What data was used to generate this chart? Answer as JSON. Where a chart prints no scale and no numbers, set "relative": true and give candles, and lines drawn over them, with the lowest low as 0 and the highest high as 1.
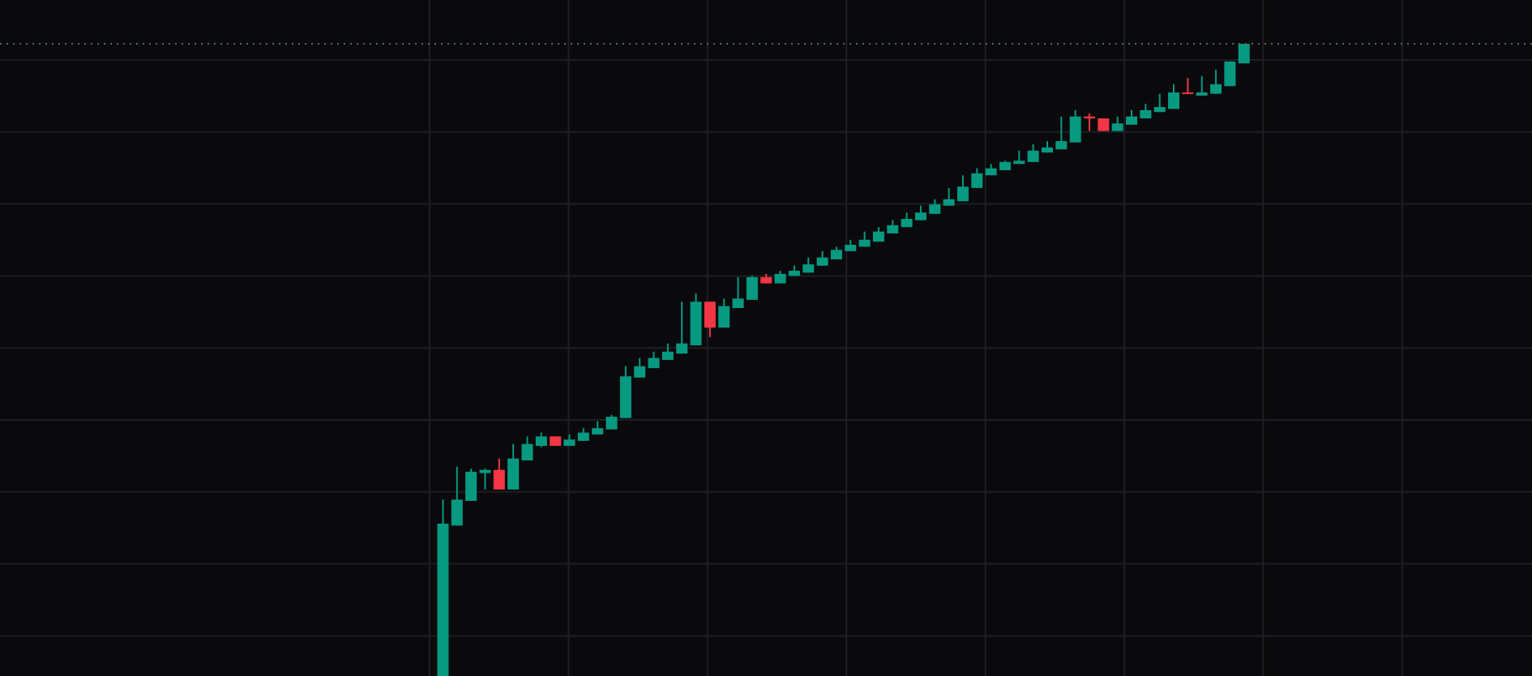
{
  "chart_data": {
    "type": "candlestick",
    "relative": true,
    "grid": true,
    "categories": [
      null,
      null,
      null,
      null,
      null,
      null,
      null,
      null,
      null,
      null,
      null,
      null,
      null,
      null,
      null,
      null,
      null,
      null,
      null,
      null,
      null,
      null,
      null,
      null,
      null,
      null,
      null,
      null,
      null,
      null,
      null,
      null,
      null,
      null,
      null,
      null,
      null,
      null,
      null,
      null,
      null,
      null,
      null,
      null,
      null,
      null,
      null,
      null,
      null,
      null,
      null,
      null,
      null,
      null,
      null,
      null,
      null,
      null
    ],
    "ohlc": [
      [
        0,
        0.279,
        0,
        0.241
      ],
      [
        0.238,
        0.331,
        0.238,
        0.279
      ],
      [
        0.277,
        0.328,
        0.277,
        0.323
      ],
      [
        0.321,
        0.328,
        0.295,
        0.326
      ],
      [
        0.326,
        0.344,
        0.295,
        0.295
      ],
      [
        0.295,
        0.367,
        0.295,
        0.344
      ],
      [
        0.341,
        0.379,
        0.341,
        0.367
      ],
      [
        0.364,
        0.385,
        0.362,
        0.379
      ],
      [
        0.379,
        0.379,
        0.364,
        0.364
      ],
      [
        0.364,
        0.382,
        0.364,
        0.374
      ],
      [
        0.372,
        0.392,
        0.372,
        0.385
      ],
      [
        0.382,
        0.403,
        0.382,
        0.392
      ],
      [
        0.39,
        0.413,
        0.39,
        0.41
      ],
      [
        0.408,
        0.49,
        0.408,
        0.474
      ],
      [
        0.472,
        0.503,
        0.472,
        0.49
      ],
      [
        0.487,
        0.513,
        0.487,
        0.503
      ],
      [
        0.5,
        0.526,
        0.5,
        0.513
      ],
      [
        0.51,
        0.592,
        0.51,
        0.526
      ],
      [
        0.523,
        0.605,
        0.523,
        0.592
      ],
      [
        0.592,
        0.592,
        0.536,
        0.551
      ],
      [
        0.551,
        0.597,
        0.551,
        0.585
      ],
      [
        0.582,
        0.631,
        0.582,
        0.597
      ],
      [
        0.595,
        0.633,
        0.595,
        0.631
      ],
      [
        0.631,
        0.636,
        0.621,
        0.621
      ],
      [
        0.621,
        0.641,
        0.621,
        0.636
      ],
      [
        0.633,
        0.649,
        0.633,
        0.641
      ],
      [
        0.638,
        0.662,
        0.638,
        0.651
      ],
      [
        0.649,
        0.672,
        0.649,
        0.662
      ],
      [
        0.659,
        0.679,
        0.659,
        0.674
      ],
      [
        0.672,
        0.69,
        0.672,
        0.682
      ],
      [
        0.679,
        0.703,
        0.679,
        0.69
      ],
      [
        0.687,
        0.71,
        0.687,
        0.703
      ],
      [
        0.7,
        0.721,
        0.7,
        0.713
      ],
      [
        0.71,
        0.733,
        0.71,
        0.723
      ],
      [
        0.721,
        0.744,
        0.721,
        0.733
      ],
      [
        0.731,
        0.754,
        0.731,
        0.746
      ],
      [
        0.744,
        0.772,
        0.744,
        0.754
      ],
      [
        0.751,
        0.792,
        0.751,
        0.774
      ],
      [
        0.772,
        0.803,
        0.772,
        0.795
      ],
      [
        0.792,
        0.81,
        0.792,
        0.803
      ],
      [
        0.8,
        0.815,
        0.8,
        0.813
      ],
      [
        0.81,
        0.831,
        0.81,
        0.815
      ],
      [
        0.813,
        0.841,
        0.813,
        0.831
      ],
      [
        0.828,
        0.846,
        0.828,
        0.836
      ],
      [
        0.833,
        0.885,
        0.833,
        0.846
      ],
      [
        0.844,
        0.895,
        0.844,
        0.885
      ],
      [
        0.885,
        0.89,
        0.862,
        0.882
      ],
      [
        0.882,
        0.882,
        0.862,
        0.862
      ],
      [
        0.862,
        0.885,
        0.862,
        0.874
      ],
      [
        0.872,
        0.895,
        0.872,
        0.885
      ],
      [
        0.882,
        0.905,
        0.882,
        0.895
      ],
      [
        0.892,
        0.921,
        0.892,
        0.9
      ],
      [
        0.897,
        0.936,
        0.897,
        0.923
      ],
      [
        0.923,
        0.946,
        0.921,
        0.921
      ],
      [
        0.918,
        0.949,
        0.918,
        0.923
      ],
      [
        0.921,
        0.959,
        0.921,
        0.936
      ],
      [
        0.933,
        0.972,
        0.933,
        0.972
      ],
      [
        0.969,
        1,
        0.969,
        1
      ]
    ],
    "colors": [
      "#089981",
      "#089981",
      "#089981",
      "#089981",
      "#f23645",
      "#089981",
      "#089981",
      "#089981",
      "#f23645",
      "#089981",
      "#089981",
      "#089981",
      "#089981",
      "#089981",
      "#089981",
      "#089981",
      "#089981",
      "#089981",
      "#089981",
      "#f23645",
      "#089981",
      "#089981",
      "#089981",
      "#f23645",
      "#089981",
      "#089981",
      "#089981",
      "#089981",
      "#089981",
      "#089981",
      "#089981",
      "#089981",
      "#089981",
      "#089981",
      "#089981",
      "#089981",
      "#089981",
      "#089981",
      "#089981",
      "#089981",
      "#089981",
      "#089981",
      "#089981",
      "#089981",
      "#089981",
      "#089981",
      "#f23645",
      "#f23645",
      "#089981",
      "#089981",
      "#089981",
      "#089981",
      "#089981",
      "#f23645",
      "#089981",
      "#089981",
      "#089981",
      "#089981"
    ],
    "ref_lines": [
      {
        "axis": "y",
        "value": 1,
        "line_style": "dotted",
        "color": "#4f6b63"
      }
    ]
  }
}
